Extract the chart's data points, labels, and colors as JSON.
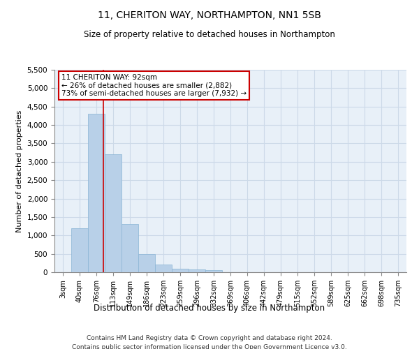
{
  "title1": "11, CHERITON WAY, NORTHAMPTON, NN1 5SB",
  "title2": "Size of property relative to detached houses in Northampton",
  "xlabel": "Distribution of detached houses by size in Northampton",
  "ylabel": "Number of detached properties",
  "categories": [
    "3sqm",
    "40sqm",
    "76sqm",
    "113sqm",
    "149sqm",
    "186sqm",
    "223sqm",
    "259sqm",
    "296sqm",
    "332sqm",
    "369sqm",
    "406sqm",
    "442sqm",
    "479sqm",
    "515sqm",
    "552sqm",
    "589sqm",
    "625sqm",
    "662sqm",
    "698sqm",
    "735sqm"
  ],
  "values": [
    0,
    1200,
    4300,
    3200,
    1300,
    500,
    200,
    100,
    75,
    50,
    0,
    0,
    0,
    0,
    0,
    0,
    0,
    0,
    0,
    0,
    0
  ],
  "bar_color": "#b8d0e8",
  "bar_edge_color": "#8ab4d4",
  "vline_color": "#cc0000",
  "annotation_text": "11 CHERITON WAY: 92sqm\n← 26% of detached houses are smaller (2,882)\n73% of semi-detached houses are larger (7,932) →",
  "annotation_box_color": "#cc0000",
  "ylim": [
    0,
    5500
  ],
  "yticks": [
    0,
    500,
    1000,
    1500,
    2000,
    2500,
    3000,
    3500,
    4000,
    4500,
    5000,
    5500
  ],
  "footnote1": "Contains HM Land Registry data © Crown copyright and database right 2024.",
  "footnote2": "Contains public sector information licensed under the Open Government Licence v3.0.",
  "grid_color": "#ccd9e8",
  "bg_color": "#e8f0f8"
}
